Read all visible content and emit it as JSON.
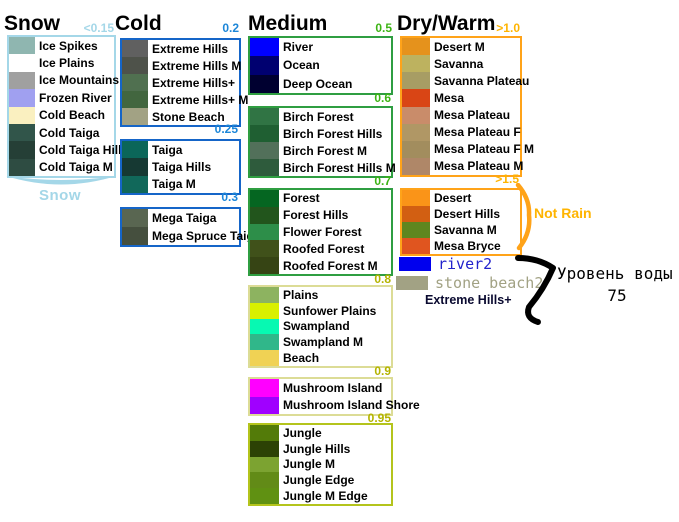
{
  "columns": [
    {
      "id": "snow",
      "title": "Snow",
      "threshold": "<0.15",
      "accent": "#A4D7E8",
      "label_color": "#A4D7E8",
      "footer_label": "Snow",
      "groups": [
        {
          "rows": [
            {
              "name": "Ice Spikes",
              "color": "#8FB6B0"
            },
            {
              "name": "Ice Plains",
              "color": "#FFFFFF"
            },
            {
              "name": "Ice Mountains",
              "color": "#A0A0A0"
            },
            {
              "name": "Frozen River",
              "color": "#A0A0F0"
            },
            {
              "name": "Cold Beach",
              "color": "#FAF0C0"
            },
            {
              "name": "Cold Taiga",
              "color": "#31554A"
            },
            {
              "name": "Cold Taiga Hills",
              "color": "#253F36"
            },
            {
              "name": "Cold Taiga M",
              "color": "#2E4C42"
            }
          ]
        }
      ]
    },
    {
      "id": "cold",
      "title": "Cold",
      "threshold": "0.2",
      "accent": "#1565C8",
      "label_color": "#1C86D8",
      "groups": [
        {
          "rows": [
            {
              "name": "Extreme Hills",
              "color": "#606060"
            },
            {
              "name": "Extreme Hills M",
              "color": "#4E524A"
            },
            {
              "name": "Extreme Hills+",
              "color": "#507050"
            },
            {
              "name": "Extreme Hills+ M",
              "color": "#42663F"
            },
            {
              "name": "Stone Beach",
              "color": "#A2A284"
            }
          ]
        },
        {
          "label": "0.25",
          "rows": [
            {
              "name": "Taiga",
              "color": "#0B6659"
            },
            {
              "name": "Taiga Hills",
              "color": "#163933"
            },
            {
              "name": "Taiga M",
              "color": "#11685A"
            }
          ]
        },
        {
          "label": "0.3",
          "rows": [
            {
              "name": "Mega Taiga",
              "color": "#596651"
            },
            {
              "name": "Mega Spruce Taiga",
              "color": "#454F3E"
            }
          ]
        }
      ]
    },
    {
      "id": "medium",
      "title": "Medium",
      "threshold": "0.5",
      "accent": "#2F9E41",
      "label_color": "#3CB414",
      "groups": [
        {
          "rows": [
            {
              "name": "River",
              "color": "#0000FF"
            },
            {
              "name": "Ocean",
              "color": "#000070"
            },
            {
              "name": "Deep Ocean",
              "color": "#000030"
            }
          ]
        },
        {
          "label": "0.6",
          "rows": [
            {
              "name": "Birch Forest",
              "color": "#307444"
            },
            {
              "name": "Birch Forest Hills",
              "color": "#1F5F32"
            },
            {
              "name": "Birch Forest M",
              "color": "#52705A"
            },
            {
              "name": "Birch Forest Hills M",
              "color": "#2E5B3C"
            }
          ]
        },
        {
          "label": "0.7",
          "rows": [
            {
              "name": "Forest",
              "color": "#056621"
            },
            {
              "name": "Forest Hills",
              "color": "#22551C"
            },
            {
              "name": "Flower Forest",
              "color": "#2D8E49"
            },
            {
              "name": "Roofed Forest",
              "color": "#40511A"
            },
            {
              "name": "Roofed Forest M",
              "color": "#364414"
            }
          ]
        },
        {
          "label": "0.8",
          "label_color": "#B4B400",
          "border": "#DCDC96",
          "rows": [
            {
              "name": "Plains",
              "color": "#8DB360"
            },
            {
              "name": "Sunfower Plains",
              "color": "#D9F000"
            },
            {
              "name": "Swampland",
              "color": "#07F9B2"
            },
            {
              "name": "Swampland M",
              "color": "#30B78A"
            },
            {
              "name": "Beach",
              "color": "#F0D254"
            }
          ]
        },
        {
          "label": "0.9",
          "label_color": "#B4B400",
          "border": "#DCDC96",
          "rows": [
            {
              "name": "Mushroom Island",
              "color": "#FF00FF"
            },
            {
              "name": "Mushroom Island Shore",
              "color": "#A000FF"
            }
          ]
        },
        {
          "label": "0.95",
          "label_color": "#B4B400",
          "border": "#B4C41C",
          "rows": [
            {
              "name": "Jungle",
              "color": "#537B09"
            },
            {
              "name": "Jungle Hills",
              "color": "#2C4205"
            },
            {
              "name": "Jungle M",
              "color": "#7CA331"
            },
            {
              "name": "Jungle Edge",
              "color": "#628B17"
            },
            {
              "name": "Jungle M Edge",
              "color": "#609112"
            }
          ]
        }
      ]
    },
    {
      "id": "dry",
      "title": "Dry/Warm",
      "threshold": ">1.0",
      "accent": "#FFA319",
      "label_color": "#FFB400",
      "groups": [
        {
          "rows": [
            {
              "name": "Desert M",
              "color": "#E5921C"
            },
            {
              "name": "Savanna",
              "color": "#BDB25F"
            },
            {
              "name": "Savanna Plateau",
              "color": "#A79D64"
            },
            {
              "name": "Mesa",
              "color": "#D94515"
            },
            {
              "name": "Mesa Plateau",
              "color": "#C98C6A"
            },
            {
              "name": "Mesa Plateau F",
              "color": "#B09765"
            },
            {
              "name": "Mesa Plateau F M",
              "color": "#A28D5E"
            },
            {
              "name": "Mesa Plateau M",
              "color": "#AF8768"
            }
          ]
        },
        {
          "label": ">1.5",
          "rows": [
            {
              "name": "Desert",
              "color": "#FA9418"
            },
            {
              "name": "Desert Hills",
              "color": "#D25F12"
            },
            {
              "name": "Savanna M",
              "color": "#5F861F"
            },
            {
              "name": "Mesa Bryce",
              "color": "#E0551F"
            }
          ]
        }
      ]
    }
  ],
  "legend": {
    "items": [
      {
        "name": "river2",
        "color": "#0000EE",
        "text_color": "#2222CC"
      },
      {
        "name": "stone beach2",
        "color": "#A2A284",
        "text_color": "#A2A284"
      }
    ],
    "note": "Extreme Hills+"
  },
  "annotations": {
    "not_rain": {
      "text": "Not Rain",
      "color": "#FFB400",
      "brace_color": "#FFA319"
    },
    "water_level": {
      "line1": "Уровень воды",
      "line2": "75",
      "arrow_color": "#000000"
    }
  }
}
